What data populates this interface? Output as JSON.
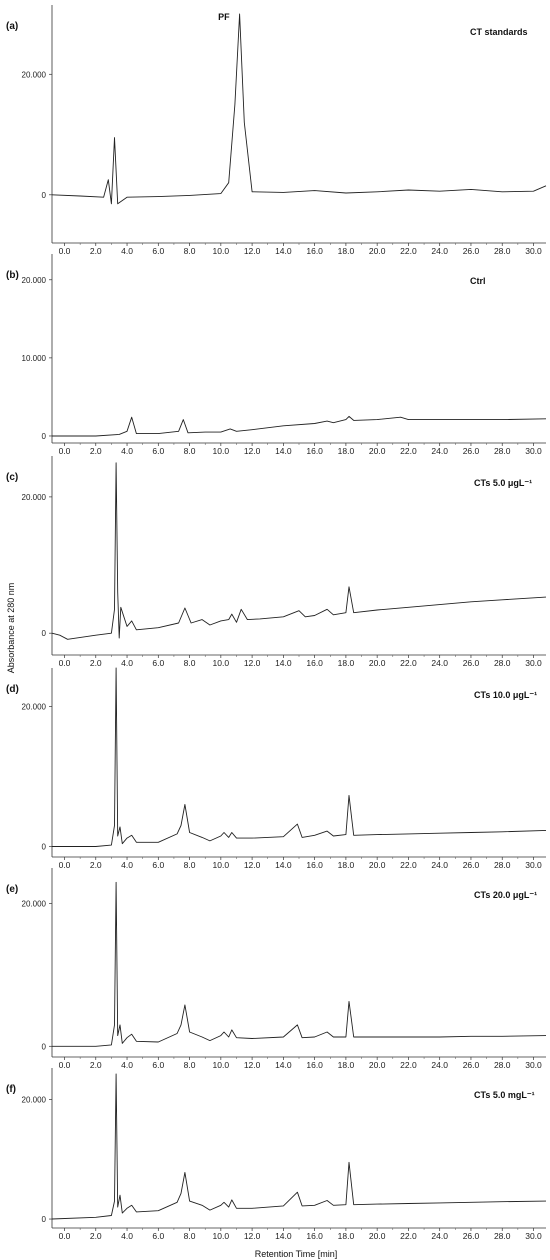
{
  "figure": {
    "ylabel": "Absorbance at 280 nm",
    "xlabel": "Retention Time [min]"
  },
  "chart_data": [
    {
      "type": "line",
      "panel_label": "(a)",
      "title": "CT standards",
      "annotations": [
        {
          "text": "PF",
          "x": 11.2,
          "y": 30000
        }
      ],
      "xlim": [
        -0.8,
        30.8
      ],
      "ylim": [
        -8000,
        31500
      ],
      "xticks": [
        "0.0",
        "2.0",
        "4.0",
        "6.0",
        "8.0",
        "10.0",
        "12.0",
        "14.0",
        "16.0",
        "18.0",
        "20.0",
        "22.0",
        "24.0",
        "26.0",
        "28.0",
        "30.0"
      ],
      "yticks": [
        "20.000",
        "0"
      ],
      "series": [
        {
          "x": [
            -0.8,
            1.0,
            2.5,
            2.8,
            3.0,
            3.2,
            3.4,
            4.0,
            6.0,
            8.0,
            10.0,
            10.5,
            10.9,
            11.2,
            11.5,
            12.0,
            14.0,
            16.0,
            18.0,
            20.0,
            22.0,
            24.0,
            26.0,
            28.0,
            30.0,
            30.8
          ],
          "y": [
            0,
            -200,
            -400,
            2500,
            -1500,
            9500,
            -1500,
            -400,
            -300,
            -100,
            200,
            2000,
            15000,
            30000,
            12000,
            500,
            400,
            700,
            300,
            500,
            800,
            600,
            900,
            500,
            600,
            1500
          ]
        }
      ]
    },
    {
      "type": "line",
      "panel_label": "(b)",
      "title": "Ctrl",
      "xlim": [
        -0.8,
        30.8
      ],
      "ylim": [
        -900,
        23300
      ],
      "xticks": [
        "0.0",
        "2.0",
        "4.0",
        "6.0",
        "8.0",
        "10.0",
        "12.0",
        "14.0",
        "16.0",
        "18.0",
        "20.0",
        "22.0",
        "24.0",
        "26.0",
        "28.0",
        "30.0"
      ],
      "yticks": [
        "20.000",
        "10.000",
        "0"
      ],
      "series": [
        {
          "x": [
            -0.8,
            2.0,
            3.5,
            4.0,
            4.3,
            4.6,
            6.0,
            7.3,
            7.6,
            7.9,
            9.0,
            10.0,
            10.6,
            11.0,
            12.0,
            14.0,
            16.0,
            16.8,
            17.2,
            18.0,
            18.2,
            18.5,
            20.0,
            21.5,
            22.0,
            24.0,
            26.0,
            28.0,
            30.8
          ],
          "y": [
            0,
            0,
            200,
            600,
            2400,
            300,
            300,
            600,
            2100,
            400,
            500,
            500,
            900,
            600,
            800,
            1300,
            1600,
            1900,
            1700,
            2100,
            2500,
            2000,
            2100,
            2400,
            2100,
            2100,
            2100,
            2100,
            2200
          ]
        }
      ]
    },
    {
      "type": "line",
      "panel_label": "(c)",
      "title": "CTs 5.0 μgL⁻¹",
      "xlim": [
        -0.8,
        30.8
      ],
      "ylim": [
        -3200,
        26000
      ],
      "xticks": [
        "0.0",
        "2.0",
        "4.0",
        "6.0",
        "8.0",
        "10.0",
        "12.0",
        "14.0",
        "16.0",
        "18.0",
        "20.0",
        "22.0",
        "24.0",
        "26.0",
        "28.0",
        "30.0"
      ],
      "yticks": [
        "20.000",
        "0"
      ],
      "series": [
        {
          "x": [
            -0.8,
            -0.3,
            0.2,
            2.0,
            3.0,
            3.2,
            3.3,
            3.4,
            3.5,
            3.6,
            4.0,
            4.3,
            4.6,
            6.0,
            7.3,
            7.7,
            8.1,
            8.8,
            9.3,
            10.0,
            10.5,
            10.7,
            11.0,
            11.3,
            11.7,
            12.5,
            14.0,
            15.0,
            15.4,
            16.0,
            16.8,
            17.2,
            18.0,
            18.2,
            18.5,
            20.0,
            22.0,
            24.0,
            26.0,
            28.0,
            30.8
          ],
          "y": [
            0,
            -300,
            -900,
            -300,
            0,
            3500,
            25000,
            6000,
            -700,
            3800,
            1000,
            1800,
            500,
            800,
            1500,
            3700,
            1500,
            2000,
            1200,
            1800,
            2000,
            2800,
            1600,
            3500,
            2000,
            2100,
            2400,
            3300,
            2400,
            2600,
            3500,
            2700,
            3000,
            6800,
            3000,
            3400,
            3800,
            4200,
            4600,
            4900,
            5300
          ]
        }
      ]
    },
    {
      "type": "line",
      "panel_label": "(d)",
      "title": "CTs 10.0 μgL⁻¹",
      "xlim": [
        -0.8,
        30.8
      ],
      "ylim": [
        -1500,
        25500
      ],
      "xticks": [
        "0.0",
        "2.0",
        "4.0",
        "6.0",
        "8.0",
        "10.0",
        "12.0",
        "14.0",
        "16.0",
        "18.0",
        "20.0",
        "22.0",
        "24.0",
        "26.0",
        "28.0",
        "30.0"
      ],
      "yticks": [
        "20.000",
        "0"
      ],
      "series": [
        {
          "x": [
            -0.8,
            2.0,
            3.0,
            3.2,
            3.3,
            3.4,
            3.55,
            3.7,
            4.0,
            4.3,
            4.6,
            6.0,
            7.2,
            7.45,
            7.7,
            8.0,
            8.8,
            9.3,
            10.0,
            10.2,
            10.5,
            10.7,
            11.0,
            12.0,
            14.0,
            14.9,
            15.2,
            16.0,
            16.8,
            17.2,
            18.0,
            18.2,
            18.5,
            20.0,
            22.0,
            24.0,
            26.0,
            28.0,
            30.8
          ],
          "y": [
            0,
            0,
            200,
            3000,
            25500,
            1500,
            2800,
            400,
            1200,
            1600,
            600,
            600,
            1800,
            3000,
            6000,
            2000,
            1300,
            800,
            1500,
            2000,
            1300,
            2000,
            1200,
            1200,
            1400,
            3200,
            1300,
            1600,
            2200,
            1500,
            1700,
            7300,
            1600,
            1700,
            1800,
            1900,
            2000,
            2100,
            2300
          ]
        }
      ]
    },
    {
      "type": "line",
      "panel_label": "(e)",
      "title": "CTs 20.0 μgL⁻¹",
      "xlim": [
        -0.8,
        30.8
      ],
      "ylim": [
        -1500,
        25000
      ],
      "xticks": [
        "0.0",
        "2.0",
        "4.0",
        "6.0",
        "8.0",
        "10.0",
        "12.0",
        "14.0",
        "16.0",
        "18.0",
        "20.0",
        "22.0",
        "24.0",
        "26.0",
        "28.0",
        "30.0"
      ],
      "yticks": [
        "20.000",
        "0"
      ],
      "series": [
        {
          "x": [
            -0.8,
            2.0,
            3.0,
            3.2,
            3.3,
            3.4,
            3.55,
            3.7,
            4.0,
            4.3,
            4.6,
            6.0,
            7.2,
            7.45,
            7.7,
            8.0,
            8.8,
            9.3,
            10.0,
            10.2,
            10.5,
            10.7,
            11.0,
            12.0,
            14.0,
            14.9,
            15.2,
            16.0,
            16.8,
            17.2,
            18.0,
            18.2,
            18.5,
            20.0,
            22.0,
            24.0,
            26.0,
            28.0,
            30.8
          ],
          "y": [
            0,
            0,
            200,
            3000,
            23000,
            1500,
            3000,
            400,
            1200,
            1700,
            700,
            600,
            1800,
            3000,
            5800,
            2000,
            1300,
            800,
            1500,
            2000,
            1300,
            2300,
            1200,
            1100,
            1300,
            3000,
            1200,
            1300,
            2000,
            1300,
            1300,
            6300,
            1300,
            1300,
            1300,
            1300,
            1400,
            1400,
            1500
          ]
        }
      ]
    },
    {
      "type": "line",
      "panel_label": "(f)",
      "title": "CTs 5.0 mgL⁻¹",
      "xlim": [
        -0.8,
        30.8
      ],
      "ylim": [
        -1500,
        25300
      ],
      "xticks": [
        "0.0",
        "2.0",
        "4.0",
        "6.0",
        "8.0",
        "10.0",
        "12.0",
        "14.0",
        "16.0",
        "18.0",
        "20.0",
        "22.0",
        "24.0",
        "26.0",
        "28.0",
        "30.0"
      ],
      "yticks": [
        "20.000",
        "0"
      ],
      "series": [
        {
          "x": [
            -0.8,
            2.0,
            3.0,
            3.2,
            3.3,
            3.4,
            3.55,
            3.7,
            4.0,
            4.3,
            4.6,
            6.0,
            7.2,
            7.45,
            7.7,
            8.0,
            8.8,
            9.3,
            10.0,
            10.2,
            10.5,
            10.7,
            11.0,
            12.0,
            14.0,
            14.9,
            15.2,
            16.0,
            16.8,
            17.2,
            18.0,
            18.2,
            18.5,
            20.0,
            22.0,
            24.0,
            26.0,
            28.0,
            30.8
          ],
          "y": [
            0,
            300,
            600,
            3000,
            24300,
            2000,
            4000,
            1000,
            1800,
            2300,
            1200,
            1400,
            2800,
            4300,
            7800,
            3000,
            2300,
            1500,
            2300,
            2800,
            2000,
            3200,
            1800,
            1800,
            2200,
            4500,
            2200,
            2300,
            3100,
            2300,
            2400,
            9500,
            2400,
            2500,
            2600,
            2700,
            2800,
            2900,
            3000
          ]
        }
      ]
    }
  ]
}
